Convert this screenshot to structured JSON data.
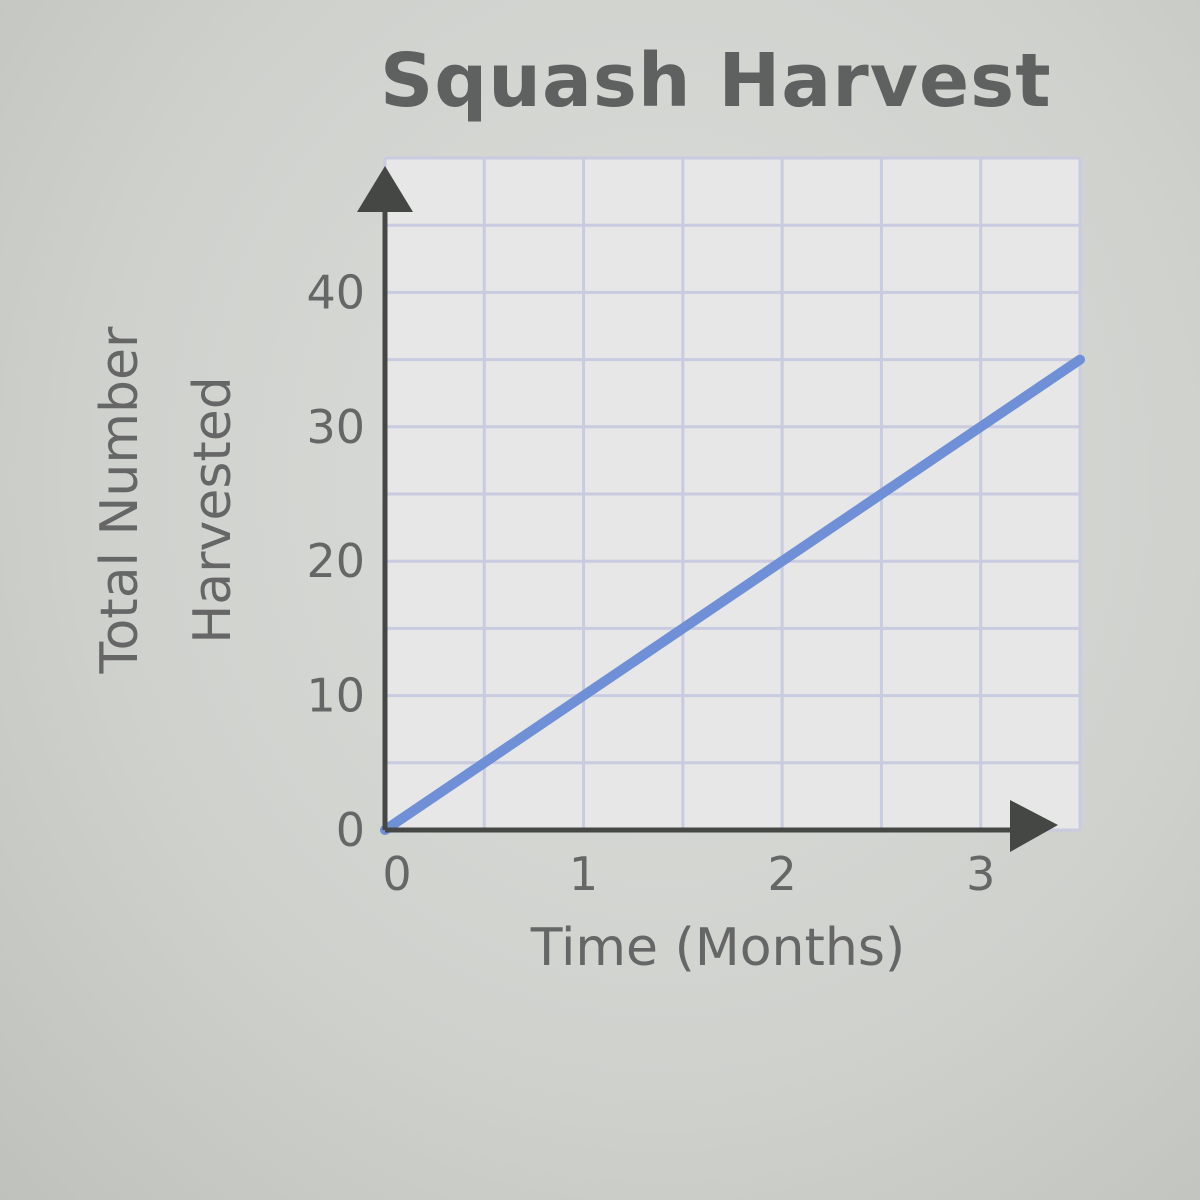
{
  "chart_data": {
    "type": "line",
    "title": "Squash Harvest",
    "xlabel": "Time (Months)",
    "ylabel_lines": [
      "Total Number",
      "Harvested"
    ],
    "x_ticks": [
      "0",
      "1",
      "2",
      "3"
    ],
    "y_ticks": [
      "0",
      "10",
      "20",
      "30",
      "40"
    ],
    "xlim": [
      0,
      3.5
    ],
    "ylim": [
      0,
      50
    ],
    "grid": true,
    "grid_step": {
      "x": 0.5,
      "y": 5
    },
    "series": [
      {
        "x": [
          0,
          3.5
        ],
        "y": [
          0,
          35
        ],
        "color": "#6f8fd6"
      }
    ],
    "colors": {
      "axis": "#454745",
      "grid": "#c9cbe0"
    }
  }
}
